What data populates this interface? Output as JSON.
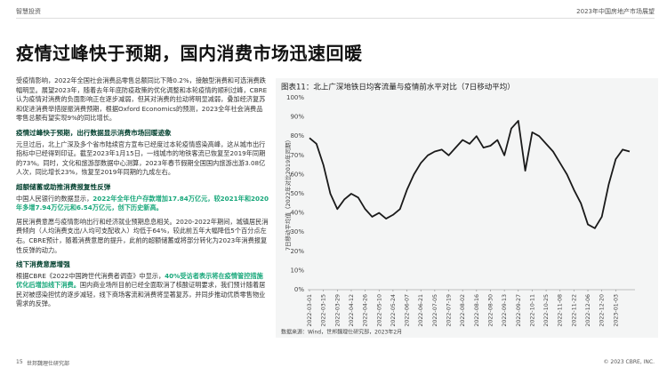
{
  "header": {
    "left": "智慧投资",
    "right": "2023年中国房地产市场展望"
  },
  "title": "疫情过峰快于预期，国内消费市场迅速回暖",
  "sections": [
    {
      "paragraphs": [
        [
          {
            "text": "受疫情影响，2022年全国社会消费品零售总额同比下降0.2%，接触型消费和可选消费跌幅明显。展望2023年，随着去年年底防疫政策的优化调整和本轮疫情的顺利过峰，CBRE认为疫情对消费的负面影响正在逐步减弱，但其对消费的拉动将明显减弱，叠加经济复苏和促进消费举措提振消费预期，根据Oxford Economics的预测，2023全年社会消费品零售总额有望实现9%的同比增长。",
            "highlight": false
          }
        ]
      ]
    },
    {
      "heading": "疫情过峰快于预期，出行数据显示消费市场回暖迹象",
      "paragraphs": [
        [
          {
            "text": "元旦过后，北上广深及多个省市陆续官方宣布已经度过本轮疫情感染高峰，这从城市出行指标中已经得到印证。截至2023年1月15日，一线城市的地铁客流已恢复至2019年同期的73%。同时，文化和旅游部数据中心测算，2023年春节假期全国国内旅游出游3.08亿人次，同比增长23%，恢复至2019年同期的九成左右。",
            "highlight": false
          }
        ]
      ]
    },
    {
      "heading": "超额储蓄或助推消费报复性反弹",
      "paragraphs": [
        [
          {
            "text": "中国人民银行的数据显示，",
            "highlight": false
          },
          {
            "text": "2022年全年住户存款增加17.84万亿元，较2021年和2020年多增7.94万亿元和6.54万亿元，创下历史新高。",
            "highlight": true
          }
        ],
        [
          {
            "text": "居民消费意愿与疫情影响出行和经济就业预期息息相关。2020-2022年期间，城镇居民消费倾向（人均消费支出/人均可支配收入）均低于64%，较此前五年大幅降低5个百分点左右。CBRE预计，随着消费意愿的提升，此前的超额储蓄或将部分转化为2023年消费报复性反弹的动力。",
            "highlight": false
          }
        ]
      ]
    },
    {
      "heading": "线下消费意愿增强",
      "paragraphs": [
        [
          {
            "text": "根据CBRE《2022中国跨世代消费者调查》中显示，",
            "highlight": false
          },
          {
            "text": "40%受访者表示将在疫情管控措施优化后增加线下消费。",
            "highlight": true
          },
          {
            "text": "国内商业场所目前已经全面取消了核酸证明要求，我们预计随着居民对被感染担忧的逐步减轻，线下商场客流和消费将显著复苏，并同步推动优质零售物业需求的反弹。",
            "highlight": false
          }
        ]
      ]
    }
  ],
  "chart_data": {
    "type": "line",
    "title": "图表11：北上广深地铁日均客流量与疫情前水平对比（7日移动平均）",
    "y_label": "7日移动平均值（2022年对比2019年同期）",
    "source": "数据来源：Wind，世邦魏理仕研究部，2023年2月",
    "x": [
      "2022-03-01",
      "2022-03-08",
      "2022-03-15",
      "2022-03-22",
      "2022-03-29",
      "2022-04-05",
      "2022-04-12",
      "2022-04-19",
      "2022-04-26",
      "2022-05-03",
      "2022-05-10",
      "2022-05-17",
      "2022-05-24",
      "2022-05-31",
      "2022-06-07",
      "2022-06-14",
      "2022-06-21",
      "2022-06-28",
      "2022-07-05",
      "2022-07-12",
      "2022-07-19",
      "2022-07-26",
      "2022-08-02",
      "2022-08-09",
      "2022-08-16",
      "2022-08-23",
      "2022-08-30",
      "2022-09-06",
      "2022-09-13",
      "2022-09-20",
      "2022-09-27",
      "2022-10-04",
      "2022-10-11",
      "2022-10-18",
      "2022-10-25",
      "2022-11-01",
      "2022-11-08",
      "2022-11-15",
      "2022-11-22",
      "2022-11-29",
      "2022-12-06",
      "2022-12-13",
      "2022-12-20",
      "2022-12-27",
      "2023-01-03",
      "2023-01-10",
      "2023-01-17"
    ],
    "series": [
      {
        "color": "#1a1a1a",
        "values": [
          79,
          76,
          65,
          50,
          42,
          47,
          50,
          48,
          42,
          38,
          40,
          37,
          39,
          42,
          52,
          60,
          66,
          70,
          72,
          73,
          70,
          74,
          78,
          76,
          80,
          74,
          75,
          78,
          70,
          84,
          88,
          62,
          82,
          80,
          76,
          72,
          66,
          60,
          52,
          45,
          34,
          32,
          38,
          55,
          68,
          73,
          72
        ]
      }
    ],
    "xlim": [
      "2022-03-01",
      "2023-01-17"
    ],
    "xticks": [
      "2022-03-01",
      "2022-03-15",
      "2022-03-29",
      "2022-04-12",
      "2022-04-26",
      "2022-05-10",
      "2022-05-24",
      "2022-06-07",
      "2022-06-21",
      "2022-07-05",
      "2022-07-19",
      "2022-08-02",
      "2022-08-16",
      "2022-08-30",
      "2022-09-13",
      "2022-09-27",
      "2022-10-11",
      "2022-10-25",
      "2022-11-08",
      "2022-11-22",
      "2022-12-06",
      "2022-12-20",
      "2023-01-03"
    ],
    "ylim": [
      0,
      100
    ],
    "yticks": [
      {
        "value": 0,
        "label": "0%"
      },
      {
        "value": 10,
        "label": "10%"
      },
      {
        "value": 20,
        "label": "20%"
      },
      {
        "value": 30,
        "label": "30%"
      },
      {
        "value": 40,
        "label": "40%"
      },
      {
        "value": 50,
        "label": "50%"
      },
      {
        "value": 60,
        "label": "60%"
      },
      {
        "value": 70,
        "label": "70%"
      },
      {
        "value": 80,
        "label": "80%"
      },
      {
        "value": 90,
        "label": "90%"
      },
      {
        "value": 100,
        "label": "100%"
      }
    ],
    "grid": false
  },
  "footer": {
    "page": "15",
    "left": "世邦魏理仕研究部",
    "right": "© 2023 CBRE, INC."
  }
}
